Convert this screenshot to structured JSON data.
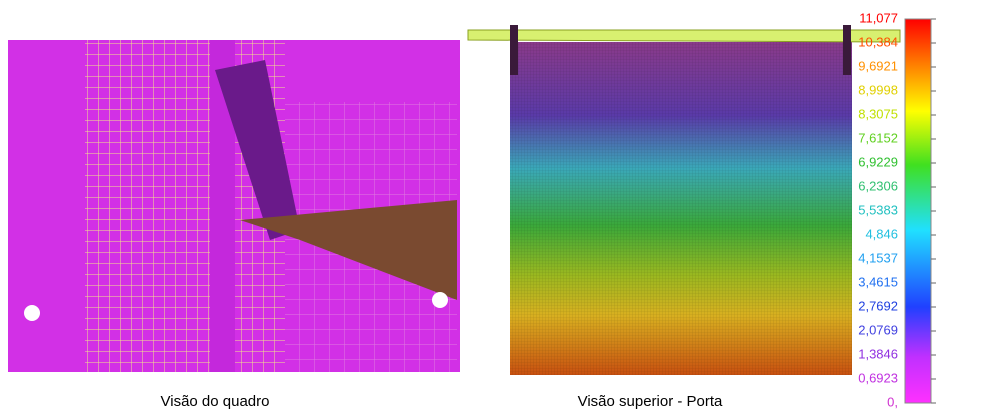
{
  "figure": {
    "captions": [
      "Visão do quadro",
      "Visão superior - Porta"
    ],
    "colorbar_labels": [
      "11,077",
      "10,384",
      "9,6921",
      "8,9998",
      "8,3075",
      "7,6152",
      "6,9229",
      "6,2306",
      "5,5383",
      "4,846",
      "4,1537",
      "3,4615",
      "2,7692",
      "2,0769",
      "1,3846",
      "0,6923",
      "0,"
    ]
  }
}
